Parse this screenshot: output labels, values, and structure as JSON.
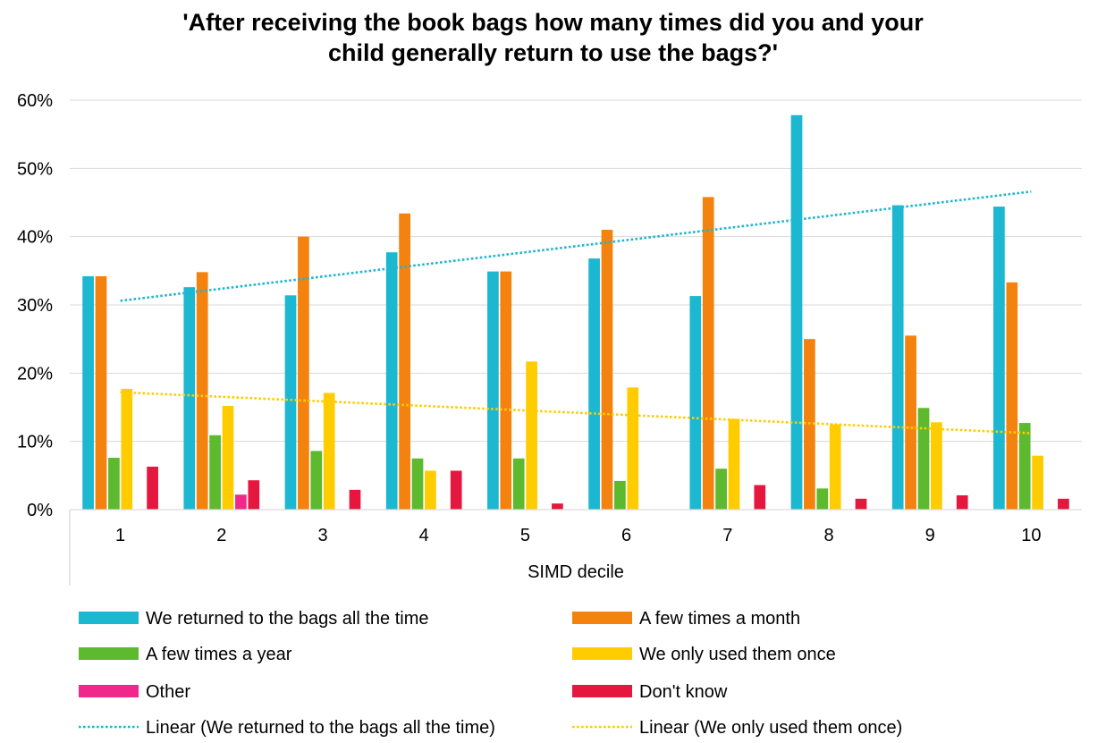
{
  "chart_data": {
    "type": "bar",
    "title_lines": [
      "'After receiving the book bags how many times did you and your",
      "child generally return to use the bags?'"
    ],
    "xlabel": "SIMD decile",
    "ylabel": "",
    "categories": [
      "1",
      "2",
      "3",
      "4",
      "5",
      "6",
      "7",
      "8",
      "9",
      "10"
    ],
    "ylim": [
      0,
      60
    ],
    "yticks": [
      "0%",
      "10%",
      "20%",
      "30%",
      "40%",
      "50%",
      "60%"
    ],
    "grid": true,
    "legend_position": "bottom",
    "series": [
      {
        "name": "We returned to the bags all the time",
        "color": "#1CB7D1",
        "values": [
          34.2,
          32.6,
          31.4,
          37.7,
          34.9,
          36.8,
          31.3,
          57.8,
          44.6,
          44.4
        ]
      },
      {
        "name": "A few times a month",
        "color": "#F4820F",
        "values": [
          34.2,
          34.8,
          40.0,
          43.4,
          34.9,
          41.0,
          45.8,
          25.0,
          25.5,
          33.3
        ]
      },
      {
        "name": "A few times a year",
        "color": "#5DB92E",
        "values": [
          7.6,
          10.9,
          8.6,
          7.5,
          7.5,
          4.2,
          6.0,
          3.1,
          14.9,
          12.7
        ]
      },
      {
        "name": "We only used them once",
        "color": "#FFCC00",
        "values": [
          17.7,
          15.2,
          17.1,
          5.7,
          21.7,
          17.9,
          13.3,
          12.5,
          12.8,
          7.9
        ]
      },
      {
        "name": "Other",
        "color": "#F0288C",
        "values": [
          0,
          2.2,
          0,
          0,
          0,
          0,
          0,
          0,
          0,
          0
        ]
      },
      {
        "name": "Don't know",
        "color": "#E5173F",
        "values": [
          6.3,
          4.3,
          2.9,
          5.7,
          0.9,
          0,
          3.6,
          1.6,
          2.1,
          1.6
        ]
      }
    ],
    "trendlines": [
      {
        "name": "Linear (We returned to the bags all the time)",
        "color": "#1CB7D1",
        "start": 30.6,
        "end": 46.6
      },
      {
        "name": "Linear (We only used them once)",
        "color": "#FFCC00",
        "start": 17.2,
        "end": 11.2
      }
    ]
  }
}
